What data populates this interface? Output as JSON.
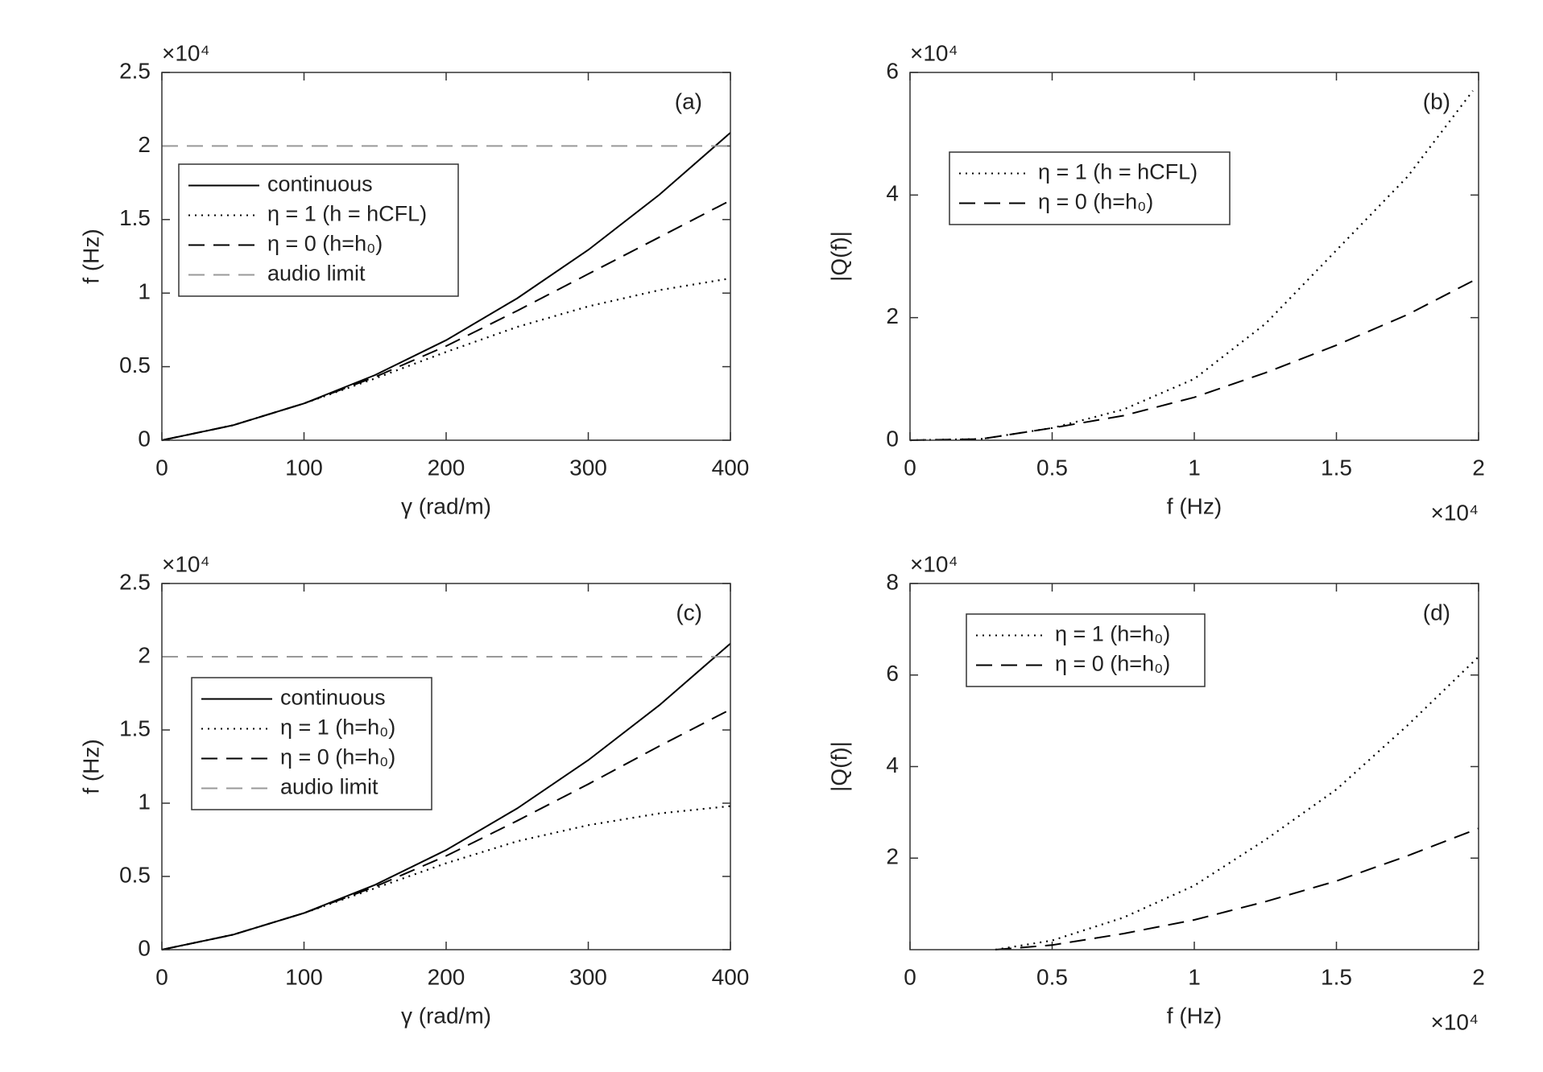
{
  "chart_data": [
    {
      "type": "line",
      "panel_label": "(a)",
      "xlabel": "γ (rad/m)",
      "ylabel": "f (Hz)",
      "y_multiplier": "×10⁴",
      "x": [
        0,
        50,
        100,
        150,
        200,
        250,
        300,
        350,
        400
      ],
      "xlim": [
        0,
        400
      ],
      "xticks": [
        0,
        100,
        200,
        300,
        400
      ],
      "ylim": [
        0,
        2.5
      ],
      "yticks": [
        0,
        0.5,
        1,
        1.5,
        2,
        2.5
      ],
      "legend": "upper left",
      "series": [
        {
          "name": "continuous",
          "color": "#000000",
          "style": "solid",
          "values": [
            0,
            0.102,
            0.25,
            0.443,
            0.68,
            0.965,
            1.294,
            1.669,
            2.09
          ]
        },
        {
          "name": "η = 1 (h = hCFL)",
          "color": "#000000",
          "style": "dotted",
          "values": [
            0,
            0.102,
            0.25,
            0.42,
            0.6,
            0.77,
            0.91,
            1.02,
            1.1
          ]
        },
        {
          "name": "η = 0 (h=h₀)",
          "color": "#000000",
          "style": "dashed",
          "values": [
            0,
            0.102,
            0.25,
            0.43,
            0.64,
            0.88,
            1.13,
            1.38,
            1.63
          ]
        },
        {
          "name": "audio limit",
          "color": "#999999",
          "style": "dashed",
          "values": [
            2,
            2,
            2,
            2,
            2,
            2,
            2,
            2,
            2
          ]
        }
      ]
    },
    {
      "type": "line",
      "panel_label": "(b)",
      "xlabel": "f (Hz)",
      "ylabel": "|Q(f)|",
      "y_multiplier": "×10⁴",
      "x_multiplier": "×10⁴",
      "x": [
        0,
        0.25,
        0.5,
        0.75,
        1,
        1.25,
        1.5,
        1.75,
        1.98
      ],
      "xlim": [
        0,
        2
      ],
      "xticks": [
        0,
        0.5,
        1,
        1.5,
        2
      ],
      "ylim": [
        0,
        6
      ],
      "yticks": [
        0,
        2,
        4,
        6
      ],
      "legend": "upper left",
      "series": [
        {
          "name": "η = 1 (h = hCFL)",
          "color": "#000000",
          "style": "dotted",
          "values": [
            0,
            0.02,
            0.2,
            0.5,
            1.0,
            1.9,
            3.1,
            4.3,
            5.7
          ]
        },
        {
          "name": "η = 0 (h=h₀)",
          "color": "#000000",
          "style": "dashed",
          "values": [
            0,
            0.02,
            0.2,
            0.4,
            0.7,
            1.1,
            1.55,
            2.05,
            2.6
          ]
        }
      ]
    },
    {
      "type": "line",
      "panel_label": "(c)",
      "xlabel": "γ (rad/m)",
      "ylabel": "f (Hz)",
      "y_multiplier": "×10⁴",
      "x": [
        0,
        50,
        100,
        150,
        200,
        250,
        300,
        350,
        400
      ],
      "xlim": [
        0,
        400
      ],
      "xticks": [
        0,
        100,
        200,
        300,
        400
      ],
      "ylim": [
        0,
        2.5
      ],
      "yticks": [
        0,
        0.5,
        1,
        1.5,
        2,
        2.5
      ],
      "legend": "upper left",
      "series": [
        {
          "name": "continuous",
          "color": "#000000",
          "style": "solid",
          "values": [
            0,
            0.102,
            0.25,
            0.443,
            0.68,
            0.965,
            1.294,
            1.669,
            2.09
          ]
        },
        {
          "name": "η = 1 (h=h₀)",
          "color": "#000000",
          "style": "dotted",
          "values": [
            0,
            0.102,
            0.25,
            0.42,
            0.59,
            0.74,
            0.85,
            0.93,
            0.98
          ]
        },
        {
          "name": "η = 0 (h=h₀)",
          "color": "#000000",
          "style": "dashed",
          "values": [
            0,
            0.102,
            0.25,
            0.43,
            0.64,
            0.88,
            1.13,
            1.39,
            1.64
          ]
        },
        {
          "name": "audio limit",
          "color": "#999999",
          "style": "dashed",
          "values": [
            2,
            2,
            2,
            2,
            2,
            2,
            2,
            2,
            2
          ]
        }
      ]
    },
    {
      "type": "line",
      "panel_label": "(d)",
      "xlabel": "f (Hz)",
      "ylabel": "|Q(f)|",
      "y_multiplier": "×10⁴",
      "x_multiplier": "×10⁴",
      "x": [
        0.3,
        0.5,
        0.75,
        1,
        1.25,
        1.5,
        1.75,
        2
      ],
      "xlim": [
        0,
        2
      ],
      "xticks": [
        0,
        0.5,
        1,
        1.5,
        2
      ],
      "ylim": [
        0,
        8
      ],
      "yticks": [
        2,
        4,
        6,
        8
      ],
      "legend": "upper left",
      "series": [
        {
          "name": "η = 1 (h=h₀)",
          "color": "#000000",
          "style": "dotted",
          "values": [
            0,
            0.2,
            0.7,
            1.4,
            2.4,
            3.5,
            4.9,
            6.4
          ]
        },
        {
          "name": "η = 0 (h=h₀)",
          "color": "#000000",
          "style": "dashed",
          "values": [
            0,
            0.1,
            0.35,
            0.65,
            1.05,
            1.5,
            2.05,
            2.65
          ]
        }
      ]
    }
  ]
}
